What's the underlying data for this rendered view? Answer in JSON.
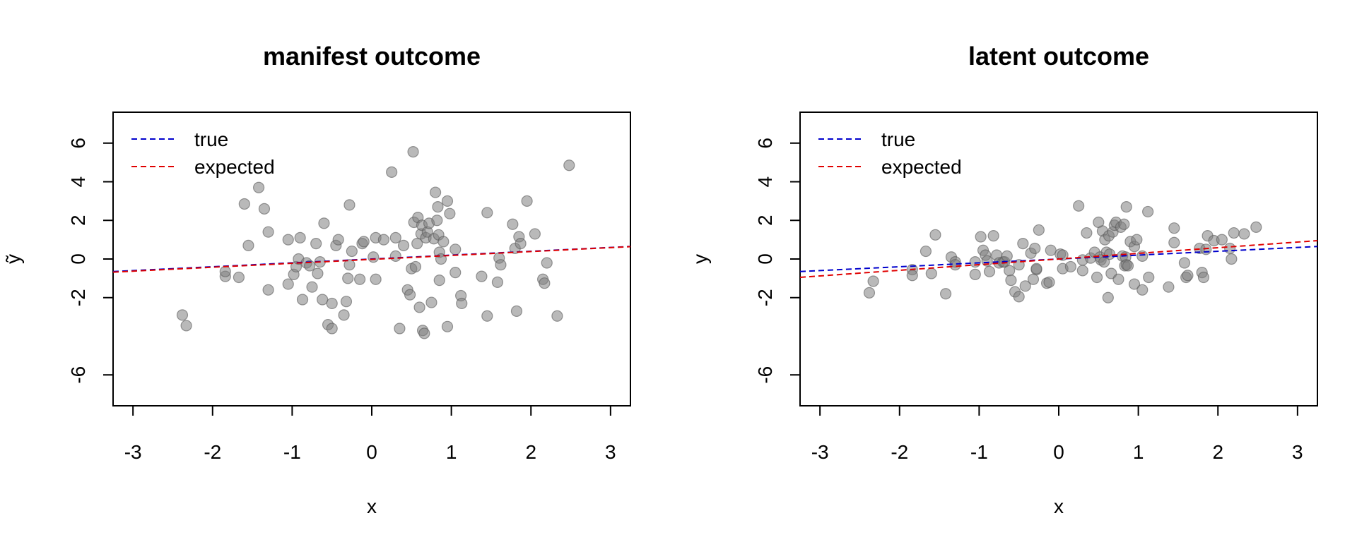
{
  "chart_data": [
    {
      "type": "scatter",
      "title": "manifest outcome",
      "xlabel": "x",
      "ylabel": "ỹ",
      "xlim": [
        -3.25,
        3.25
      ],
      "ylim": [
        -7.6,
        7.6
      ],
      "xticks": [
        -3,
        -2,
        -1,
        0,
        1,
        2,
        3
      ],
      "yticks": [
        -6,
        -2,
        0,
        2,
        4,
        6
      ],
      "legend_position": "top-left",
      "grid": false,
      "point_color": "#808080",
      "series": [
        {
          "name": "points",
          "points": [
            [
              -2.38,
              -2.9
            ],
            [
              -2.33,
              -3.45
            ],
            [
              -1.84,
              -0.9
            ],
            [
              -1.84,
              -0.65
            ],
            [
              -1.67,
              -0.95
            ],
            [
              -1.6,
              2.85
            ],
            [
              -1.55,
              0.7
            ],
            [
              -1.42,
              3.7
            ],
            [
              -1.35,
              2.6
            ],
            [
              -1.3,
              1.4
            ],
            [
              -1.3,
              -1.6
            ],
            [
              -1.05,
              1.0
            ],
            [
              -1.05,
              -1.3
            ],
            [
              -0.98,
              -0.8
            ],
            [
              -0.95,
              -0.4
            ],
            [
              -0.92,
              0.0
            ],
            [
              -0.9,
              1.1
            ],
            [
              -0.87,
              -2.1
            ],
            [
              -0.82,
              -0.2
            ],
            [
              -0.78,
              -0.35
            ],
            [
              -0.75,
              -1.45
            ],
            [
              -0.7,
              0.8
            ],
            [
              -0.68,
              -0.75
            ],
            [
              -0.65,
              -0.15
            ],
            [
              -0.62,
              -2.1
            ],
            [
              -0.6,
              1.85
            ],
            [
              -0.55,
              -3.4
            ],
            [
              -0.5,
              -3.6
            ],
            [
              -0.5,
              -2.3
            ],
            [
              -0.45,
              0.7
            ],
            [
              -0.42,
              1.0
            ],
            [
              -0.35,
              -2.9
            ],
            [
              -0.32,
              -2.2
            ],
            [
              -0.3,
              -1.0
            ],
            [
              -0.28,
              2.8
            ],
            [
              -0.28,
              -0.3
            ],
            [
              -0.25,
              0.4
            ],
            [
              -0.15,
              -1.05
            ],
            [
              -0.12,
              0.8
            ],
            [
              -0.1,
              0.9
            ],
            [
              0.02,
              0.1
            ],
            [
              0.05,
              1.1
            ],
            [
              0.05,
              -1.05
            ],
            [
              0.15,
              1.0
            ],
            [
              0.25,
              4.5
            ],
            [
              0.3,
              1.1
            ],
            [
              0.3,
              0.15
            ],
            [
              0.35,
              -3.6
            ],
            [
              0.4,
              0.7
            ],
            [
              0.45,
              -1.6
            ],
            [
              0.48,
              -1.85
            ],
            [
              0.5,
              -0.5
            ],
            [
              0.52,
              5.55
            ],
            [
              0.53,
              1.9
            ],
            [
              0.55,
              -0.4
            ],
            [
              0.57,
              0.8
            ],
            [
              0.58,
              2.15
            ],
            [
              0.6,
              -2.5
            ],
            [
              0.62,
              1.3
            ],
            [
              0.63,
              1.75
            ],
            [
              0.64,
              -3.7
            ],
            [
              0.66,
              -3.85
            ],
            [
              0.68,
              1.1
            ],
            [
              0.7,
              1.4
            ],
            [
              0.72,
              1.85
            ],
            [
              0.75,
              -2.25
            ],
            [
              0.78,
              1.05
            ],
            [
              0.8,
              3.45
            ],
            [
              0.82,
              2.0
            ],
            [
              0.83,
              2.7
            ],
            [
              0.84,
              1.25
            ],
            [
              0.85,
              0.35
            ],
            [
              0.85,
              -1.1
            ],
            [
              0.87,
              0.0
            ],
            [
              0.9,
              0.9
            ],
            [
              0.95,
              3.0
            ],
            [
              0.95,
              -3.5
            ],
            [
              0.98,
              2.35
            ],
            [
              1.05,
              0.5
            ],
            [
              1.05,
              -0.7
            ],
            [
              1.12,
              -1.9
            ],
            [
              1.13,
              -2.3
            ],
            [
              1.38,
              -0.9
            ],
            [
              1.45,
              2.4
            ],
            [
              1.45,
              -2.95
            ],
            [
              1.58,
              -1.2
            ],
            [
              1.6,
              0.05
            ],
            [
              1.62,
              -0.3
            ],
            [
              1.77,
              1.8
            ],
            [
              1.8,
              0.55
            ],
            [
              1.82,
              -2.7
            ],
            [
              1.85,
              1.15
            ],
            [
              1.87,
              0.8
            ],
            [
              1.95,
              3.0
            ],
            [
              2.05,
              1.3
            ],
            [
              2.15,
              -1.05
            ],
            [
              2.17,
              -1.25
            ],
            [
              2.2,
              -0.2
            ],
            [
              2.33,
              -2.95
            ],
            [
              2.48,
              4.85
            ]
          ]
        },
        {
          "name": "true",
          "color": "#0000CC",
          "line": [
            [
              -3.25,
              -0.65
            ],
            [
              3.25,
              0.65
            ]
          ]
        },
        {
          "name": "expected",
          "color": "#E00000",
          "line": [
            [
              -3.25,
              -0.68
            ],
            [
              3.25,
              0.64
            ]
          ]
        }
      ]
    },
    {
      "type": "scatter",
      "title": "latent outcome",
      "xlabel": "x",
      "ylabel": "y",
      "xlim": [
        -3.25,
        3.25
      ],
      "ylim": [
        -7.6,
        7.6
      ],
      "xticks": [
        -3,
        -2,
        -1,
        0,
        1,
        2,
        3
      ],
      "yticks": [
        -6,
        -2,
        0,
        2,
        4,
        6
      ],
      "legend_position": "top-left",
      "grid": false,
      "point_color": "#808080",
      "series": [
        {
          "name": "points",
          "points": [
            [
              -2.38,
              -1.75
            ],
            [
              -2.33,
              -1.15
            ],
            [
              -1.84,
              -0.55
            ],
            [
              -1.84,
              -0.85
            ],
            [
              -1.67,
              0.4
            ],
            [
              -1.6,
              -0.75
            ],
            [
              -1.55,
              1.25
            ],
            [
              -1.42,
              -1.8
            ],
            [
              -1.35,
              0.1
            ],
            [
              -1.3,
              -0.15
            ],
            [
              -1.3,
              -0.3
            ],
            [
              -1.05,
              -0.8
            ],
            [
              -1.05,
              -0.15
            ],
            [
              -0.98,
              1.15
            ],
            [
              -0.95,
              0.45
            ],
            [
              -0.92,
              0.2
            ],
            [
              -0.9,
              -0.1
            ],
            [
              -0.87,
              -0.65
            ],
            [
              -0.82,
              1.2
            ],
            [
              -0.78,
              0.2
            ],
            [
              -0.75,
              -0.2
            ],
            [
              -0.7,
              -0.15
            ],
            [
              -0.68,
              -0.15
            ],
            [
              -0.65,
              0.15
            ],
            [
              -0.62,
              -0.6
            ],
            [
              -0.6,
              -1.1
            ],
            [
              -0.55,
              -1.7
            ],
            [
              -0.5,
              -1.95
            ],
            [
              -0.5,
              -0.3
            ],
            [
              -0.45,
              0.8
            ],
            [
              -0.42,
              -1.4
            ],
            [
              -0.35,
              0.3
            ],
            [
              -0.32,
              -1.05
            ],
            [
              -0.3,
              0.55
            ],
            [
              -0.28,
              -0.55
            ],
            [
              -0.28,
              -0.5
            ],
            [
              -0.25,
              1.5
            ],
            [
              -0.15,
              -1.25
            ],
            [
              -0.12,
              -1.2
            ],
            [
              -0.1,
              0.45
            ],
            [
              0.02,
              0.25
            ],
            [
              0.05,
              0.2
            ],
            [
              0.05,
              -0.5
            ],
            [
              0.15,
              -0.4
            ],
            [
              0.25,
              2.75
            ],
            [
              0.3,
              -0.05
            ],
            [
              0.3,
              -0.6
            ],
            [
              0.35,
              1.35
            ],
            [
              0.4,
              0.05
            ],
            [
              0.45,
              0.35
            ],
            [
              0.48,
              -0.95
            ],
            [
              0.5,
              1.9
            ],
            [
              0.52,
              0.1
            ],
            [
              0.53,
              -0.05
            ],
            [
              0.55,
              1.45
            ],
            [
              0.57,
              -0.15
            ],
            [
              0.58,
              1.0
            ],
            [
              0.6,
              0.35
            ],
            [
              0.62,
              -2.0
            ],
            [
              0.63,
              1.2
            ],
            [
              0.64,
              0.25
            ],
            [
              0.66,
              -0.75
            ],
            [
              0.68,
              1.4
            ],
            [
              0.7,
              1.75
            ],
            [
              0.72,
              1.9
            ],
            [
              0.75,
              -1.05
            ],
            [
              0.78,
              1.65
            ],
            [
              0.8,
              0.15
            ],
            [
              0.82,
              1.8
            ],
            [
              0.83,
              -0.35
            ],
            [
              0.84,
              0.1
            ],
            [
              0.85,
              2.7
            ],
            [
              0.85,
              -0.3
            ],
            [
              0.87,
              -0.35
            ],
            [
              0.9,
              0.9
            ],
            [
              0.95,
              -1.3
            ],
            [
              0.95,
              0.65
            ],
            [
              0.98,
              1.0
            ],
            [
              1.05,
              -1.6
            ],
            [
              1.05,
              0.15
            ],
            [
              1.12,
              2.45
            ],
            [
              1.13,
              -0.95
            ],
            [
              1.38,
              -1.45
            ],
            [
              1.45,
              1.6
            ],
            [
              1.45,
              0.85
            ],
            [
              1.58,
              -0.2
            ],
            [
              1.6,
              -0.95
            ],
            [
              1.62,
              -0.85
            ],
            [
              1.77,
              0.55
            ],
            [
              1.8,
              -0.7
            ],
            [
              1.82,
              -0.95
            ],
            [
              1.85,
              0.5
            ],
            [
              1.87,
              1.2
            ],
            [
              1.95,
              0.95
            ],
            [
              2.05,
              1.0
            ],
            [
              2.15,
              0.55
            ],
            [
              2.17,
              0.0
            ],
            [
              2.2,
              1.35
            ],
            [
              2.33,
              1.3
            ],
            [
              2.48,
              1.65
            ]
          ]
        },
        {
          "name": "true",
          "color": "#0000CC",
          "line": [
            [
              -3.25,
              -0.65
            ],
            [
              3.25,
              0.65
            ]
          ]
        },
        {
          "name": "expected",
          "color": "#E00000",
          "line": [
            [
              -3.25,
              -0.95
            ],
            [
              3.25,
              0.95
            ]
          ]
        }
      ]
    }
  ]
}
